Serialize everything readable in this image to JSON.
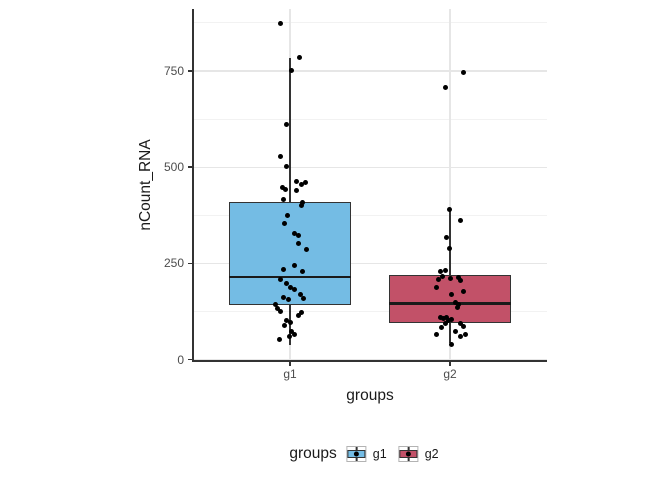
{
  "chart_data": {
    "type": "boxplot",
    "title": "",
    "xlabel": "groups",
    "ylabel": "nCount_RNA",
    "categories": [
      "g1",
      "g2"
    ],
    "ylim": [
      0,
      905
    ],
    "yticks": [
      0,
      250,
      500,
      750
    ],
    "ytick_labels": [
      "0",
      "250",
      "500",
      "750"
    ],
    "minor_grid": [
      125,
      375,
      625,
      875
    ],
    "grid": true,
    "legend": {
      "title": "groups",
      "position": "bottom-center",
      "entries": [
        {
          "label": "g1",
          "fill": "#74BCE4"
        },
        {
          "label": "g2",
          "fill": "#C25168"
        }
      ]
    },
    "point_color": "#000000",
    "series": [
      {
        "name": "g1",
        "fill": "#74BCE4",
        "box": {
          "whisker_low": 37,
          "q1": 141,
          "median": 214,
          "q3": 410,
          "whisker_high": 784
        },
        "points": [
          [
            -10,
            873
          ],
          [
            9.3,
            786
          ],
          [
            1.7,
            752
          ],
          [
            -3.3,
            610
          ],
          [
            -9.3,
            528
          ],
          [
            -4,
            501
          ],
          [
            6.7,
            462
          ],
          [
            15,
            460
          ],
          [
            -7.3,
            446
          ],
          [
            -5,
            443
          ],
          [
            6.7,
            439
          ],
          [
            -6.7,
            416
          ],
          [
            12.7,
            407
          ],
          [
            11.7,
            455
          ],
          [
            11.7,
            400
          ],
          [
            -2.7,
            374
          ],
          [
            -5.7,
            354
          ],
          [
            4,
            327
          ],
          [
            8.3,
            322
          ],
          [
            8.3,
            301
          ],
          [
            16,
            285
          ],
          [
            4.3,
            245
          ],
          [
            -6.7,
            233
          ],
          [
            12.7,
            230
          ],
          [
            -10,
            207
          ],
          [
            -4,
            197
          ],
          [
            0,
            188
          ],
          [
            4,
            182
          ],
          [
            10.7,
            169
          ],
          [
            13.3,
            158
          ],
          [
            -6.7,
            161
          ],
          [
            -1.7,
            156
          ],
          [
            -15,
            143
          ],
          [
            -12.7,
            132
          ],
          [
            -10,
            125
          ],
          [
            11.7,
            121
          ],
          [
            8.3,
            115
          ],
          [
            -3.3,
            102
          ],
          [
            0,
            95
          ],
          [
            -6,
            89
          ],
          [
            1.7,
            72
          ],
          [
            4.3,
            66
          ],
          [
            -0.7,
            59
          ],
          [
            -11,
            52
          ]
        ]
      },
      {
        "name": "g2",
        "fill": "#C25168",
        "box": {
          "whisker_low": 42,
          "q1": 95,
          "median": 145,
          "q3": 220,
          "whisker_high": 387
        },
        "points": [
          [
            13.3,
            746
          ],
          [
            -5,
            707
          ],
          [
            -0.7,
            389
          ],
          [
            10,
            361
          ],
          [
            -4,
            318
          ],
          [
            -1,
            289
          ],
          [
            -5,
            232
          ],
          [
            -10,
            229
          ],
          [
            -7.3,
            217
          ],
          [
            8.3,
            212
          ],
          [
            0,
            210
          ],
          [
            -11.7,
            208
          ],
          [
            10.7,
            206
          ],
          [
            -13.3,
            186
          ],
          [
            13.3,
            177
          ],
          [
            1.7,
            168
          ],
          [
            5,
            149
          ],
          [
            8.3,
            143
          ],
          [
            7.3,
            134
          ],
          [
            -10,
            110
          ],
          [
            -3.3,
            108
          ],
          [
            -6.7,
            106
          ],
          [
            1.7,
            105
          ],
          [
            -1.7,
            102
          ],
          [
            -5,
            93
          ],
          [
            10,
            93
          ],
          [
            -8.3,
            82
          ],
          [
            13.3,
            85
          ],
          [
            5,
            72
          ],
          [
            -13.3,
            65
          ],
          [
            15,
            65
          ],
          [
            10,
            61
          ],
          [
            1.7,
            39
          ]
        ]
      }
    ]
  },
  "colors": {
    "background": "#FFFFFF",
    "axis_line": "#333333",
    "tick_label": "#4D4D4D",
    "axis_title": "#1A1A1A",
    "grid_major": "#E6E6E6",
    "grid_minor": "#F2F2F2",
    "box_border": "#333333",
    "median_line": "#1A1A1A",
    "point": "#000000",
    "legend_key_border": "#B3B3B3"
  }
}
